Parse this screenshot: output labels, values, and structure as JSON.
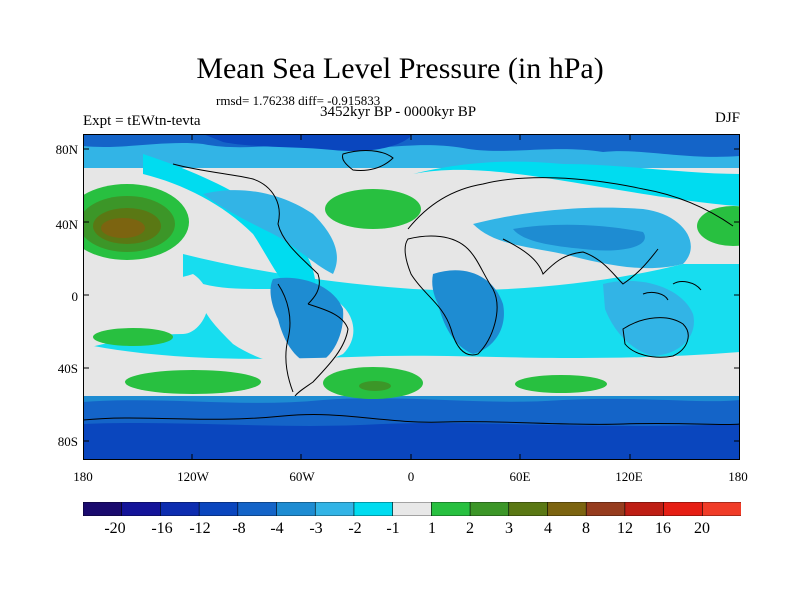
{
  "title": "Mean Sea Level Pressure (in hPa)",
  "stats": "rmsd= 1.76238 diff= -0.915833",
  "subtitle": "3452kyr BP - 0000kyr BP",
  "experiment": "Expt = tEWtn-tevta",
  "season": "DJF",
  "lat_ticks": [
    "80N",
    "40N",
    "0",
    "40S",
    "80S"
  ],
  "lon_ticks": [
    "180",
    "120W",
    "60W",
    "0",
    "60E",
    "120E",
    "180"
  ],
  "colorbar": {
    "labels": [
      "-20",
      "-16",
      "-12",
      "-8",
      "-4",
      "-3",
      "-2",
      "-1",
      "1",
      "2",
      "3",
      "4",
      "8",
      "12",
      "16",
      "20"
    ],
    "colors": [
      "#1a0a6e",
      "#141499",
      "#0d2db0",
      "#0a46be",
      "#1464c8",
      "#1e8cd2",
      "#32b4e6",
      "#00dcf0",
      "#e8e8e8",
      "#28c040",
      "#3c9628",
      "#5a7814",
      "#7c6410",
      "#963c1e",
      "#be1e14",
      "#e61e14",
      "#f03c28"
    ]
  },
  "colors": {
    "ocean_base": "#e6e6e6",
    "deep_blue": "#0a46be",
    "mid_blue": "#1e8cd2",
    "light_blue": "#00dcf0",
    "cyan": "#32b4e6",
    "green": "#28c040",
    "dark_green": "#3c9628",
    "brown": "#7c6410"
  }
}
